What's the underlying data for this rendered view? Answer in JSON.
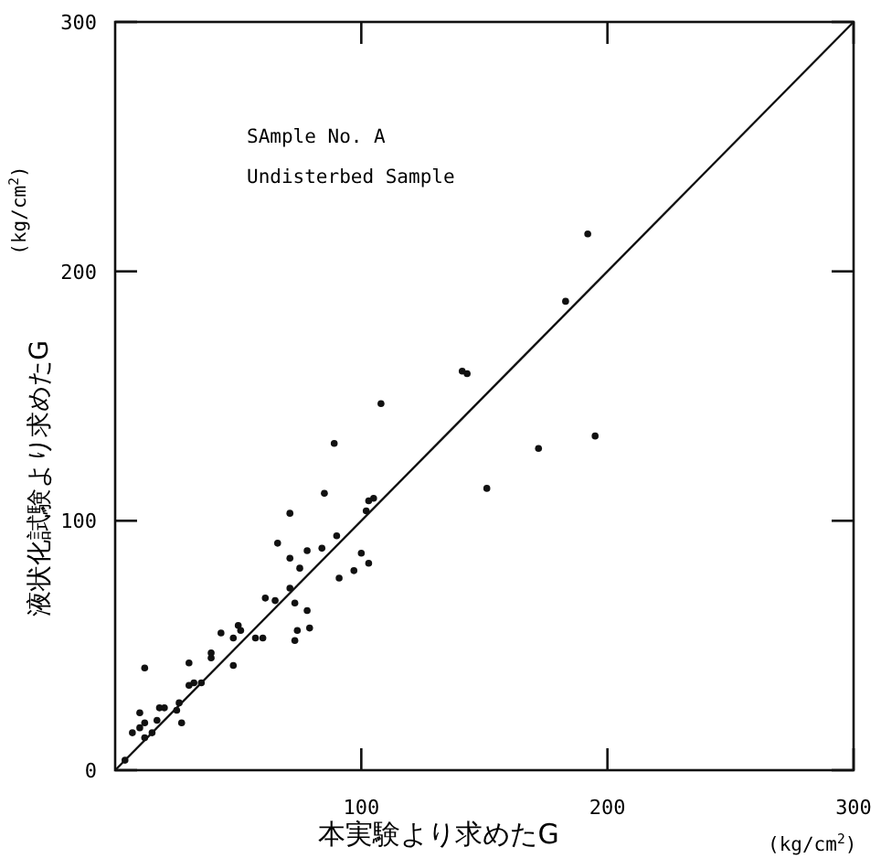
{
  "chart_data": {
    "type": "scatter",
    "xlabel": "本実験より求めたG",
    "ylabel": "液状化試験より求めたG",
    "annotations": [
      "SAmple No. A",
      "Undisterbed Sample",
      "(kg/cm$^{2}$)",
      "(kg/cm$^{2}$)"
    ],
    "xlim": [
      0,
      300
    ],
    "ylim": [
      0,
      300
    ],
    "xticks": [
      100,
      200,
      300
    ],
    "yticks": [
      0,
      100,
      200,
      300
    ],
    "grid": false,
    "series": [
      {
        "type": "scatter",
        "color": "#111111",
        "marker": "circle",
        "x": [
          4,
          7,
          10,
          10,
          12,
          12,
          12,
          15,
          17,
          18,
          20,
          25,
          26,
          27,
          30,
          30,
          32,
          35,
          39,
          39,
          43,
          48,
          48,
          50,
          51,
          57,
          60,
          61,
          65,
          66,
          71,
          71,
          71,
          73,
          74,
          73,
          75,
          78,
          78,
          79,
          84,
          85,
          89,
          90,
          91,
          97,
          100,
          102,
          103,
          103,
          105,
          108,
          141,
          143,
          151,
          172,
          183,
          192,
          195
        ],
        "values": [
          4,
          15,
          17,
          23,
          19,
          41,
          13,
          15,
          20,
          25,
          25,
          24,
          27,
          19,
          43,
          34,
          35,
          35,
          45,
          47,
          55,
          53,
          42,
          58,
          56,
          53,
          53,
          69,
          68,
          91,
          85,
          73,
          103,
          52,
          56,
          67,
          81,
          88,
          64,
          57,
          89,
          111,
          131,
          94,
          77,
          80,
          87,
          104,
          83,
          108,
          109,
          147,
          160,
          159,
          113,
          129,
          188,
          215,
          134
        ]
      },
      {
        "type": "line",
        "color": "#111111",
        "marker": "none",
        "line_style": "solid",
        "x": [
          0,
          300
        ],
        "values": [
          0,
          300
        ]
      }
    ]
  }
}
